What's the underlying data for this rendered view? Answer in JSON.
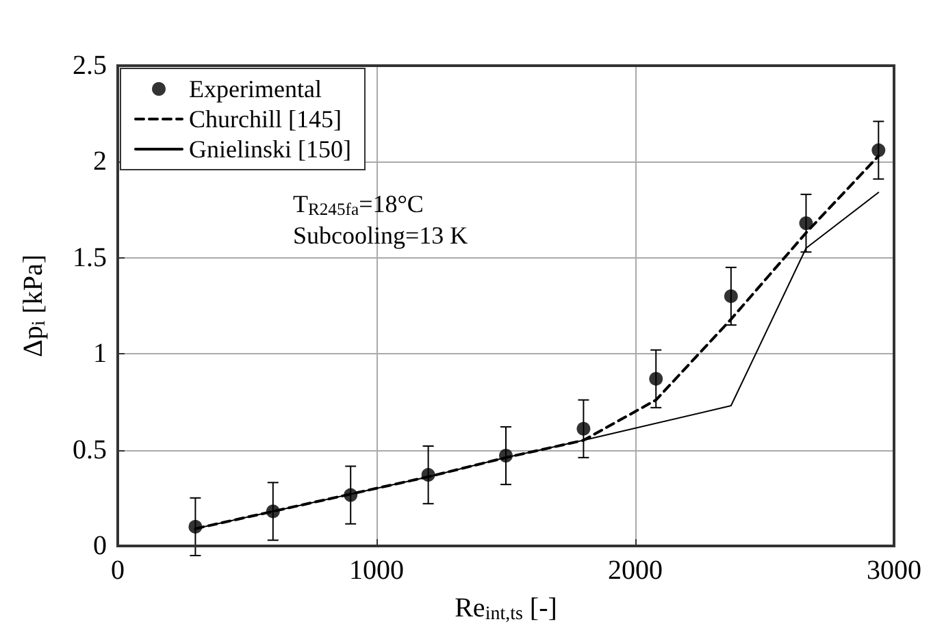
{
  "chart_data": {
    "type": "line",
    "xlabel": "Re$_{int,ts}$ [-]",
    "ylabel": "Δp$_{i}$ [kPa]",
    "annotations": [
      "T$_{R245fa}$=18°C",
      "Subcooling=13 K"
    ],
    "xlim": [
      0,
      3000
    ],
    "xticks": [
      0,
      1000,
      2000,
      3000
    ],
    "ylim": [
      0,
      2.5
    ],
    "yticks": [
      0,
      0.5,
      1,
      1.5,
      2,
      2.5
    ],
    "grid": true,
    "legend": "top left",
    "series": [
      {
        "name": "Experimental",
        "type": "scatter",
        "marker": "circle",
        "color": "#000000",
        "x": [
          300,
          600,
          900,
          1200,
          1500,
          1800,
          2080,
          2370,
          2660,
          2940
        ],
        "values": [
          0.1,
          0.18,
          0.265,
          0.37,
          0.47,
          0.61,
          0.87,
          1.3,
          1.68,
          2.06
        ],
        "errors": [
          0.15,
          0.15,
          0.15,
          0.15,
          0.15,
          0.15,
          0.15,
          0.15,
          0.15,
          0.15
        ]
      },
      {
        "name": "Churchill [145]",
        "line_style": "dashed",
        "color": "#000000",
        "x": [
          300,
          600,
          900,
          1200,
          1500,
          1800,
          2080,
          2370,
          2660,
          2940
        ],
        "values": [
          0.09,
          0.18,
          0.27,
          0.36,
          0.46,
          0.55,
          0.76,
          1.18,
          1.63,
          2.03
        ]
      },
      {
        "name": "Gnielinski [150]",
        "line_style": "solid",
        "color": "#000000",
        "x": [
          300,
          600,
          900,
          1200,
          1500,
          1800,
          2370,
          2660,
          2940
        ],
        "values": [
          0.09,
          0.18,
          0.27,
          0.36,
          0.46,
          0.55,
          0.73,
          1.55,
          1.84
        ]
      }
    ]
  }
}
